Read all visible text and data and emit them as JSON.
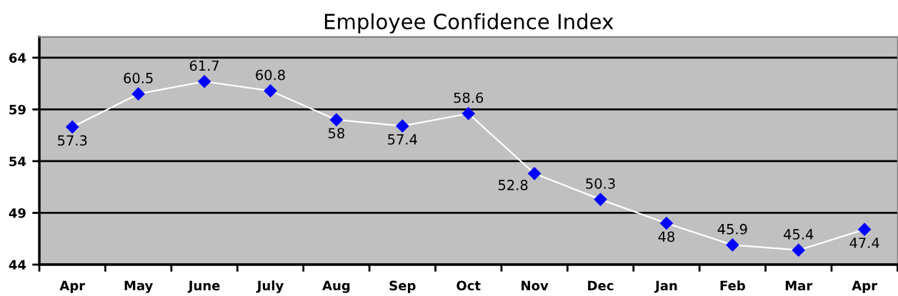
{
  "chart_data": {
    "type": "line",
    "title": "Employee Confidence Index",
    "categories": [
      "Apr",
      "May",
      "June",
      "July",
      "Aug",
      "Sep",
      "Oct",
      "Nov",
      "Dec",
      "Jan",
      "Feb",
      "Mar",
      "Apr"
    ],
    "series": [
      {
        "color": "#0000ff",
        "values": [
          57.3,
          60.5,
          61.7,
          60.8,
          58,
          57.4,
          58.6,
          52.8,
          50.3,
          48,
          45.9,
          45.4,
          47.4
        ]
      }
    ],
    "ylim": [
      44,
      66
    ],
    "yticks": [
      44,
      49,
      54,
      59,
      64
    ],
    "grid": "y",
    "marker": "diamond",
    "line_style": "solid",
    "data_labels": true
  }
}
